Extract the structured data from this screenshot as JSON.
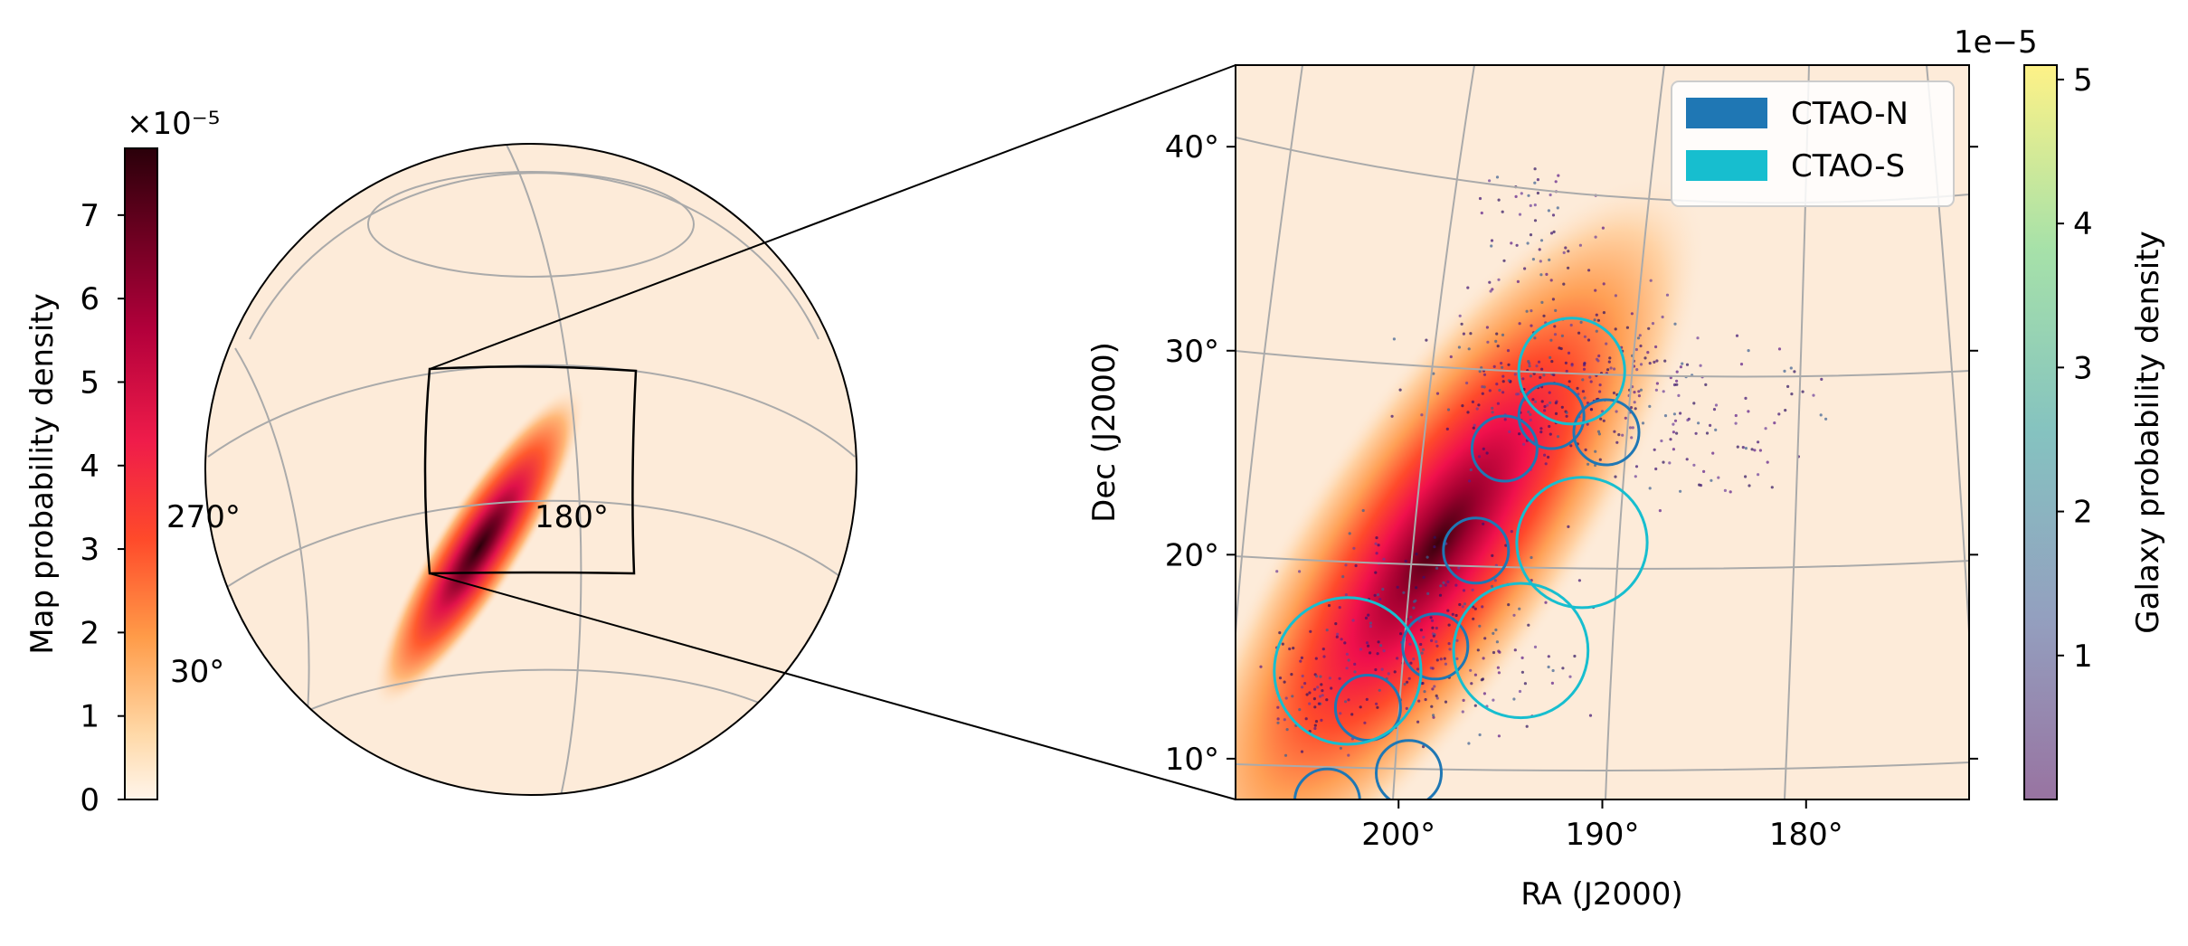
{
  "chart_data": [
    {
      "type": "heatmap",
      "projection": "orthographic-globe",
      "colormap": "reds",
      "colorbar": {
        "label": "Map probability density",
        "exponent": "×10⁻⁵",
        "ticks": [
          "0",
          "1",
          "2",
          "3",
          "4",
          "5",
          "6",
          "7"
        ],
        "range": [
          0,
          7.8
        ]
      },
      "globe_labels": [
        "270°",
        "180°",
        "30°"
      ],
      "grid": true
    },
    {
      "type": "scatter",
      "xlabel": "RA (J2000)",
      "ylabel": "Dec (J2000)",
      "x_ticks": [
        {
          "value": 200,
          "label": "200°"
        },
        {
          "value": 190,
          "label": "190°"
        },
        {
          "value": 180,
          "label": "180°"
        }
      ],
      "y_ticks": [
        {
          "value": 10,
          "label": "10°"
        },
        {
          "value": 20,
          "label": "20°"
        },
        {
          "value": 30,
          "label": "30°"
        },
        {
          "value": 40,
          "label": "40°"
        }
      ],
      "xlim": [
        208,
        172
      ],
      "ylim": [
        8,
        44
      ],
      "grid": true,
      "legend": {
        "placement": "top-right",
        "entries": [
          {
            "label": "CTAO-N",
            "color": "#1f77b4"
          },
          {
            "label": "CTAO-S",
            "color": "#17becf"
          }
        ]
      },
      "pointings": [
        {
          "telescope": "CTAO-N",
          "ra": 194.8,
          "dec": 25.2,
          "r": 1.6
        },
        {
          "telescope": "CTAO-N",
          "ra": 192.5,
          "dec": 26.8,
          "r": 1.6
        },
        {
          "telescope": "CTAO-N",
          "ra": 189.8,
          "dec": 26.0,
          "r": 1.6
        },
        {
          "telescope": "CTAO-N",
          "ra": 196.2,
          "dec": 20.2,
          "r": 1.6
        },
        {
          "telescope": "CTAO-N",
          "ra": 198.2,
          "dec": 15.5,
          "r": 1.6
        },
        {
          "telescope": "CTAO-N",
          "ra": 201.5,
          "dec": 12.5,
          "r": 1.6
        },
        {
          "telescope": "CTAO-N",
          "ra": 199.5,
          "dec": 9.3,
          "r": 1.6
        },
        {
          "telescope": "CTAO-N",
          "ra": 203.5,
          "dec": 7.9,
          "r": 1.6
        },
        {
          "telescope": "CTAO-S",
          "ra": 191.5,
          "dec": 29.0,
          "r": 2.6
        },
        {
          "telescope": "CTAO-S",
          "ra": 191.0,
          "dec": 20.6,
          "r": 3.2
        },
        {
          "telescope": "CTAO-S",
          "ra": 194.0,
          "dec": 15.3,
          "r": 3.3
        },
        {
          "telescope": "CTAO-S",
          "ra": 202.5,
          "dec": 14.3,
          "r": 3.6
        }
      ],
      "colorbar": {
        "label": "Galaxy probability density",
        "exponent": "1e−5",
        "colormap": "viridis",
        "ticks": [
          "1",
          "2",
          "3",
          "4",
          "5"
        ],
        "range": [
          0,
          5.1
        ]
      }
    }
  ]
}
